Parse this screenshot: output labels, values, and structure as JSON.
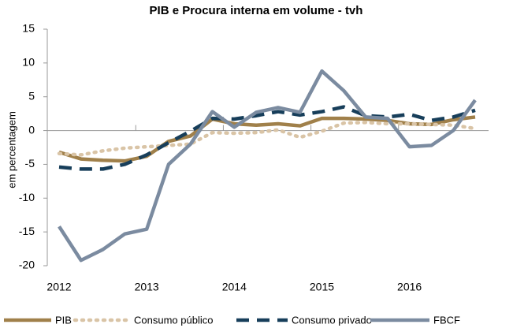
{
  "chart_data": {
    "type": "line",
    "title": "PIB e Procura interna em volume - tvh",
    "y_label": "em percentagem",
    "categories": [
      "2012",
      null,
      null,
      null,
      "2013",
      null,
      null,
      null,
      "2014",
      null,
      null,
      null,
      "2015",
      null,
      null,
      null,
      "2016",
      null,
      null,
      null
    ],
    "series": [
      {
        "name": "PIB",
        "color": "#a0804a",
        "style": "solid",
        "values": [
          -3.2,
          -4.2,
          -4.4,
          -4.5,
          -3.8,
          -1.6,
          -0.8,
          1.7,
          1.0,
          0.8,
          1.0,
          0.7,
          1.8,
          1.8,
          1.7,
          1.5,
          1.0,
          0.9,
          1.6,
          2.0
        ]
      },
      {
        "name": "Consumo público",
        "color": "#d9c4a6",
        "style": "dotted",
        "values": [
          -3.4,
          -3.6,
          -3.0,
          -2.6,
          -2.4,
          -2.2,
          -2.0,
          -0.3,
          -0.4,
          -0.3,
          0.1,
          -1.0,
          -0.1,
          1.1,
          1.2,
          1.0,
          1.0,
          0.9,
          0.8,
          0.3
        ]
      },
      {
        "name": "Consumo privado",
        "color": "#173e5a",
        "style": "dashed",
        "values": [
          -5.4,
          -5.7,
          -5.7,
          -5.0,
          -3.6,
          -1.8,
          -0.1,
          1.8,
          1.7,
          2.2,
          2.8,
          2.3,
          2.8,
          3.5,
          2.2,
          2.0,
          2.4,
          1.5,
          2.0,
          3.0
        ]
      },
      {
        "name": "FBCF",
        "color": "#7b8ba0",
        "style": "solid",
        "values": [
          -14.2,
          -19.2,
          -17.6,
          -15.3,
          -14.6,
          -5.0,
          -2.0,
          2.8,
          0.5,
          2.7,
          3.4,
          2.7,
          8.8,
          5.9,
          2.0,
          1.8,
          -2.4,
          -2.2,
          0.0,
          4.5
        ]
      }
    ],
    "ylim": [
      -20,
      15
    ],
    "yticks": [
      -20,
      -15,
      -10,
      -5,
      0,
      5,
      10,
      15
    ],
    "grid": false,
    "legend": "bottom"
  }
}
